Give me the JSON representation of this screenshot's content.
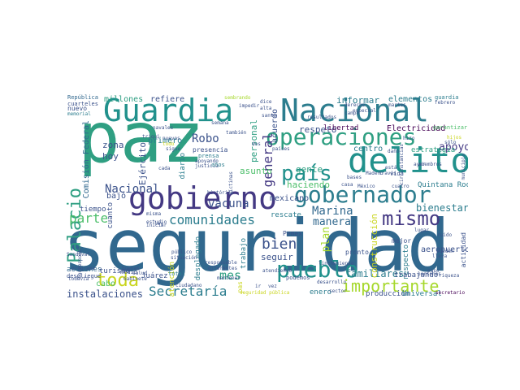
{
  "palette": {
    "yellow": "#c9d51e",
    "yellow_green": "#a6d82c",
    "green": "#4dbf6b",
    "sea_green": "#2f9f82",
    "teal": "#21918c",
    "cyan_blue": "#2c7d8e",
    "blue": "#31688e",
    "deep_blue": "#3b528b",
    "indigo": "#443983",
    "purple": "#440154"
  },
  "words": {
    "seguridad": "seguridad",
    "paz": "paz",
    "guardia": "Guardia",
    "nacional_big": "Nacional",
    "gobierno": "gobierno",
    "delito": "delito",
    "gobernador": "gobernador",
    "operaciones": "operaciones",
    "pais": "país",
    "pueblo": "pueblo",
    "importante": "importante",
    "mismo": "mismo",
    "palacio": "Palacio",
    "toda": "toda",
    "comunidades": "comunidades",
    "secretaria": "Secretaría",
    "parte": "parte",
    "bien": "bien",
    "vacuna": "vacuna",
    "nacional_small": "Nacional",
    "marina": "Marina",
    "manera": "manera",
    "general": "general",
    "apoyo": "apoyo",
    "bienestar": "bienestar",
    "respeto": "respeto",
    "familiares": "familiares",
    "instalaciones": "instalaciones",
    "mes": "mes",
    "robo": "Robo",
    "zona": "zona",
    "hoy": "hoy",
    "ejercito": "Ejército",
    "primero": "primero",
    "millones": "millones",
    "refiere": "refiere",
    "informar": "informar",
    "elementos": "elementos",
    "plan": "plan",
    "construccion": "construcción",
    "haciendo": "haciendo",
    "gente": "gente",
    "asunto": "asunto",
    "seguir": "seguir",
    "mexicano": "mexicano",
    "centro": "centro",
    "personal": "personal",
    "acuerdo": "acuerdo",
    "comision_federal": "Comisión Federal",
    "bajo": "bajó",
    "cuanto": "cuanto",
    "cabo": "cabo",
    "trabajo": "trabajo",
    "desplegado": "desplegado",
    "diario": "diario",
    "atencion": "atención",
    "enero": "enero",
    "tiempo": "tiempo",
    "respecto": "respecto",
    "acciones": "acciones",
    "turismo": "turismo",
    "juarez": "Juárez",
    "pemex": "Pemex",
    "rescate": "rescate",
    "aeropuerto": "aeropuerto",
    "trabajando": "trabajando",
    "electricidad": "Electricidad",
    "libertad": "libertad",
    "quintana_roo": "Quintana Roo",
    "estrategia": "estrategia",
    "produccion": "producción",
    "universal": "Universal",
    "mejor": "mejor",
    "pronto": "pronto",
    "actividad": "actividad",
    "republica": "República",
    "cuarteles": "cuarteles",
    "nuevo": "nuevo",
    "memorial": "memorial",
    "sembrando": "sembrando",
    "guardia_small": "guardia",
    "febrero": "febrero",
    "garantizar": "garantizar",
    "presencia": "presencia",
    "prensa": "prensa",
    "apoyando": "apoyando",
    "justicia": "justicia",
    "anos": "años",
    "total": "total",
    "medio": "medio",
    "salud": "salud",
    "desarrollo": "desarrollo",
    "secretario": "secretario",
    "vida": "vida",
    "traves": "través",
    "podemos": "podemos",
    "sector": "sector",
    "mantener": "mantener",
    "programa": "programa",
    "despliegue": "despliegue",
    "gabinete": "Gabinete",
    "todavia": "todavía",
    "cada": "cada",
    "historico": "histórico",
    "triqui": "triqui",
    "responsable": "responsable",
    "madero": "Madero",
    "seguridad_publica": "seguridad pública",
    "casa": "casa",
    "cuatro": "cuatro",
    "mexico": "México",
    "esta": "está",
    "ayer": "ayer",
    "pueden": "pueden",
    "hizo": "hizo",
    "personas": "personas",
    "derecho": "derecho",
    "campo": "campo",
    "especial": "especial",
    "paises": "países",
    "navales": "navales",
    "nuevos": "nuevos",
    "sigue": "sigue",
    "tambien": "también",
    "publico": "público",
    "situacion": "situación",
    "diferentes": "diferentes",
    "linchamiento": "linchamiento",
    "atendiendo": "atendiendo",
    "riqueza": "riqueza",
    "lugar": "lugar",
    "solo": "sólo",
    "hijos": "hijos",
    "municipio": "municipio",
    "circunstancias": "circunstancias",
    "miembros": "miembros",
    "victimas": "víctimas",
    "dano": "daño",
    "martes": "martes",
    "impedir": "impedir",
    "resultados": "resultados",
    "ciudadano": "ciudadano",
    "corresponde": "corresponde",
    "sandoval": "Sandoval",
    "buenas": "buenas",
    "estudio": "estudio",
    "misma": "misma",
    "bases": "bases",
    "dos": "dos",
    "ley": "ley",
    "ir": "ir",
    "vez": "vez",
    "pas": "pas",
    "iniciar": "iniciar",
    "semana": "semana",
    "dice": "dice",
    "alta": "alta",
    "santo": "santo",
    "todo": "todo",
    "ruido": "ruido",
    "paso": "paso",
    "lleva": "lleva"
  }
}
